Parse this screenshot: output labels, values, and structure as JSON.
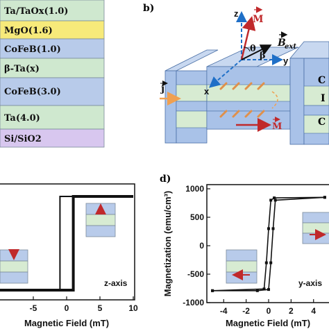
{
  "layer_stack": {
    "layers": [
      {
        "label": "Ta/TaOx(1.0)",
        "color": "#cfe8cf"
      },
      {
        "label": "MgO(1.6)",
        "color": "#f7ea7a"
      },
      {
        "label": "CoFeB(1.0)",
        "color": "#b8cbea"
      },
      {
        "label": "β-Ta(x)",
        "color": "#cfe8cf"
      },
      {
        "label": "CoFeB(3.0)",
        "color": "#b8cbea"
      },
      {
        "label": "Ta(4.0)",
        "color": "#cfe8cf"
      },
      {
        "label": "Si/SiO2",
        "color": "#d8c7ef"
      }
    ]
  },
  "panel_b": {
    "tag": "b)",
    "labels": {
      "z": "z",
      "y": "y",
      "x": "x",
      "M": "M",
      "B": "B",
      "B_sub": "ext",
      "theta": "θ",
      "beta": "β",
      "j": "j",
      "M_bottom": "M"
    },
    "right_letters": [
      "C",
      "I",
      "C"
    ],
    "colors": {
      "block": "#a9c2e8",
      "middle": "#d7ebd2",
      "current": "#f0a050",
      "red": "#c0292b",
      "blue": "#1f6fc7"
    }
  },
  "panel_d": {
    "tag": "d)"
  },
  "chart_data": [
    {
      "type": "line",
      "panel": "c",
      "title": "",
      "xlabel": "Magnetic Field (mT)",
      "ylabel": "",
      "xlim": [
        -10,
        10
      ],
      "x_ticks": [
        -5,
        0,
        5,
        10
      ],
      "x_tick_labels": [
        "-5",
        "0",
        "5",
        "10"
      ],
      "annotation": "z-axis",
      "series": [
        {
          "x": [
            -11,
            1,
            1,
            10
          ],
          "values": [
            -1,
            -1,
            1,
            1
          ]
        },
        {
          "x": [
            10,
            -1,
            -1,
            -11
          ],
          "values": [
            1,
            1,
            -1,
            -1
          ]
        }
      ]
    },
    {
      "type": "line",
      "panel": "d",
      "title": "",
      "xlabel": "Magnetic Field (mT)",
      "ylabel": "Magnetization (emu/cm³)",
      "xlim": [
        -5.5,
        5.5
      ],
      "ylim": [
        -1000,
        1000
      ],
      "x_ticks": [
        -4,
        -2,
        0,
        2,
        4
      ],
      "x_tick_labels": [
        "-4",
        "-2",
        "0",
        "2",
        "4"
      ],
      "y_ticks": [
        -1000,
        -500,
        0,
        500,
        1000
      ],
      "y_tick_labels": [
        "-1000",
        "-500",
        "0",
        "500",
        "1000"
      ],
      "annotation": "y-axis",
      "series": [
        {
          "x": [
            -5,
            -1,
            0,
            0.2,
            0.4,
            0.6,
            5
          ],
          "values": [
            -790,
            -790,
            -770,
            -300,
            300,
            800,
            850
          ]
        },
        {
          "x": [
            5,
            0.5,
            0.2,
            0,
            -0.2,
            -0.4,
            -5
          ],
          "values": [
            850,
            840,
            800,
            300,
            -300,
            -760,
            -790
          ]
        }
      ]
    }
  ]
}
